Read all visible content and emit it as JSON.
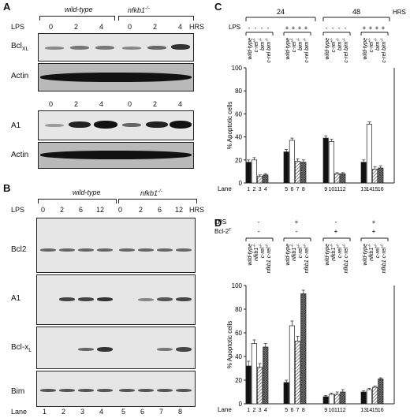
{
  "panelA": {
    "letter": "A",
    "groups": [
      "wild-type",
      "nfkb1"
    ],
    "group_sup": "-/-",
    "lps_label": "LPS",
    "hrs_label": "HRS",
    "times_top": [
      "0",
      "2",
      "4",
      "0",
      "2",
      "4"
    ],
    "times_mid": [
      "0",
      "2",
      "4",
      "0",
      "2",
      "4"
    ],
    "blots": [
      "Bcl",
      "Actin",
      "A1",
      "Actin"
    ],
    "bcl_sub": "XL"
  },
  "panelB": {
    "letter": "B",
    "groups": [
      "wild-type",
      "nfkb1"
    ],
    "group_sup": "-/-",
    "lps_label": "LPS",
    "hrs_label": "HRS",
    "times": [
      "0",
      "2",
      "6",
      "12",
      "0",
      "2",
      "6",
      "12"
    ],
    "blots": [
      "Bcl2",
      "A1",
      "Bcl-x",
      "Bim"
    ],
    "bclx_sub": "L",
    "lane_label": "Lane",
    "lanes": [
      "1",
      "2",
      "3",
      "4",
      "5",
      "6",
      "7",
      "8"
    ]
  },
  "panelC": {
    "letter": "C",
    "time_labels": [
      "24",
      "48"
    ],
    "hrs_label": "HRS",
    "lps_label": "LPS",
    "lps_signs": [
      "-",
      "-",
      "-",
      "-",
      "+",
      "+",
      "+",
      "+",
      "-",
      "-",
      "-",
      "-",
      "+",
      "+",
      "+",
      "+"
    ],
    "genotypes": [
      "wild-type",
      "c-rel",
      "bim",
      "c-rel bim"
    ],
    "genotype_sup": "-/-",
    "ylabel": "% Apoptotic cells",
    "yticks": [
      "0",
      "20",
      "40",
      "60",
      "80",
      "100"
    ],
    "lane_label": "Lane",
    "lanes": [
      "1",
      "2",
      "3",
      "4",
      "5",
      "6",
      "7",
      "8",
      "9",
      "10",
      "11",
      "12",
      "13",
      "14",
      "15",
      "16"
    ]
  },
  "panelD": {
    "letter": "D",
    "lps_label": "LPS",
    "bcl2_label": "Bcl-2",
    "bcl2_sup": "T",
    "lps_signs": [
      "-",
      "+",
      "-",
      "+"
    ],
    "bcl2_signs": [
      "-",
      "-",
      "+",
      "+"
    ],
    "genotypes": [
      "wild-type",
      "nfkb1",
      "c-rel",
      "nfkb1 c-rel"
    ],
    "genotype_sup": "-/-",
    "ylabel": "% Apoptotic cells",
    "yticks": [
      "0",
      "20",
      "40",
      "60",
      "80",
      "100"
    ],
    "lane_label": "Lane",
    "lanes": [
      "1",
      "2",
      "3",
      "4",
      "5",
      "6",
      "7",
      "8",
      "9",
      "10",
      "11",
      "12",
      "13",
      "14",
      "15",
      "16"
    ]
  },
  "chart_data": [
    {
      "type": "bar",
      "ylabel": "% Apoptotic cells",
      "ylim": [
        0,
        100
      ],
      "categories": [
        "1",
        "2",
        "3",
        "4",
        "5",
        "6",
        "7",
        "8",
        "9",
        "10",
        "11",
        "12",
        "13",
        "14",
        "15",
        "16"
      ],
      "values": [
        18,
        20,
        6,
        7,
        27,
        37,
        19,
        18,
        39,
        36,
        8,
        8,
        18,
        51,
        12,
        13
      ],
      "errors": [
        2,
        2,
        1,
        1,
        2,
        2,
        2,
        2,
        2,
        2,
        1,
        1,
        2,
        2,
        2,
        2
      ],
      "fills": [
        "black",
        "white",
        "hatch",
        "cross",
        "black",
        "white",
        "hatch",
        "cross",
        "black",
        "white",
        "hatch",
        "cross",
        "black",
        "white",
        "hatch",
        "cross"
      ]
    },
    {
      "type": "bar",
      "ylabel": "% Apoptotic cells",
      "ylim": [
        0,
        100
      ],
      "categories": [
        "1",
        "2",
        "3",
        "4",
        "5",
        "6",
        "7",
        "8",
        "9",
        "10",
        "11",
        "12",
        "13",
        "14",
        "15",
        "16"
      ],
      "values": [
        32,
        51,
        31,
        48,
        18,
        66,
        53,
        93,
        6,
        8,
        8,
        10,
        10,
        12,
        14,
        21
      ],
      "errors": [
        4,
        3,
        3,
        3,
        2,
        4,
        4,
        3,
        1,
        1,
        2,
        2,
        1,
        1,
        1,
        1
      ],
      "fills": [
        "black",
        "white",
        "hatch",
        "cross",
        "black",
        "white",
        "hatch",
        "cross",
        "black",
        "white",
        "hatch",
        "cross",
        "black",
        "white",
        "hatch",
        "cross"
      ]
    }
  ]
}
